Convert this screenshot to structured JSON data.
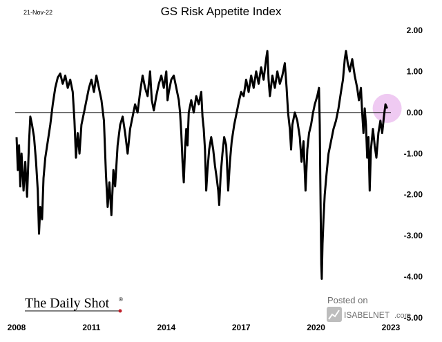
{
  "chart_data": {
    "type": "line",
    "title": "GS Risk Appetite Index",
    "date_label": "21-Nov-22",
    "ylim": [
      -5,
      2
    ],
    "y_ticks": [
      2,
      1,
      0,
      -1,
      -2,
      -3,
      -4,
      -5
    ],
    "y_tick_labels": [
      "2.00",
      "1.00",
      "0.00",
      "-1.00",
      "-2.00",
      "-3.00",
      "-4.00",
      "-5.00"
    ],
    "xlim": [
      2008,
      2023
    ],
    "x_ticks": [
      2008,
      2011,
      2014,
      2017,
      2020,
      2023
    ],
    "x_tick_labels": [
      "2008",
      "2011",
      "2014",
      "2017",
      "2020",
      "2023"
    ],
    "zero_line": 0,
    "highlight": {
      "x": 2022.85,
      "y": 0.1,
      "color": "#e9b8ee"
    },
    "series": [
      {
        "name": "GS Risk Appetite Index",
        "color": "#000000",
        "points": [
          [
            2008.0,
            -0.6
          ],
          [
            2008.05,
            -1.4
          ],
          [
            2008.1,
            -0.8
          ],
          [
            2008.15,
            -1.8
          ],
          [
            2008.2,
            -1.0
          ],
          [
            2008.28,
            -1.9
          ],
          [
            2008.35,
            -1.2
          ],
          [
            2008.42,
            -2.05
          ],
          [
            2008.5,
            -0.7
          ],
          [
            2008.55,
            -0.1
          ],
          [
            2008.62,
            -0.3
          ],
          [
            2008.7,
            -0.6
          ],
          [
            2008.78,
            -1.2
          ],
          [
            2008.85,
            -1.9
          ],
          [
            2008.9,
            -2.95
          ],
          [
            2008.95,
            -2.3
          ],
          [
            2009.02,
            -2.6
          ],
          [
            2009.08,
            -1.6
          ],
          [
            2009.15,
            -1.1
          ],
          [
            2009.25,
            -0.7
          ],
          [
            2009.35,
            -0.3
          ],
          [
            2009.45,
            0.2
          ],
          [
            2009.55,
            0.6
          ],
          [
            2009.65,
            0.85
          ],
          [
            2009.75,
            0.95
          ],
          [
            2009.85,
            0.7
          ],
          [
            2009.95,
            0.9
          ],
          [
            2010.05,
            0.6
          ],
          [
            2010.15,
            0.8
          ],
          [
            2010.25,
            0.5
          ],
          [
            2010.32,
            -0.2
          ],
          [
            2010.38,
            -1.1
          ],
          [
            2010.45,
            -0.5
          ],
          [
            2010.52,
            -1.0
          ],
          [
            2010.6,
            -0.3
          ],
          [
            2010.7,
            0.0
          ],
          [
            2010.8,
            0.3
          ],
          [
            2010.9,
            0.6
          ],
          [
            2011.0,
            0.8
          ],
          [
            2011.1,
            0.5
          ],
          [
            2011.2,
            0.9
          ],
          [
            2011.3,
            0.6
          ],
          [
            2011.4,
            0.3
          ],
          [
            2011.5,
            -0.2
          ],
          [
            2011.58,
            -1.5
          ],
          [
            2011.65,
            -2.3
          ],
          [
            2011.72,
            -1.7
          ],
          [
            2011.8,
            -2.5
          ],
          [
            2011.88,
            -1.4
          ],
          [
            2011.95,
            -1.8
          ],
          [
            2012.05,
            -0.8
          ],
          [
            2012.15,
            -0.3
          ],
          [
            2012.25,
            -0.1
          ],
          [
            2012.35,
            -0.5
          ],
          [
            2012.45,
            -1.0
          ],
          [
            2012.55,
            -0.4
          ],
          [
            2012.65,
            -0.1
          ],
          [
            2012.75,
            0.2
          ],
          [
            2012.85,
            0.0
          ],
          [
            2012.95,
            0.5
          ],
          [
            2013.05,
            0.9
          ],
          [
            2013.15,
            0.6
          ],
          [
            2013.25,
            0.4
          ],
          [
            2013.35,
            1.0
          ],
          [
            2013.42,
            0.3
          ],
          [
            2013.5,
            0.05
          ],
          [
            2013.6,
            0.4
          ],
          [
            2013.7,
            0.7
          ],
          [
            2013.8,
            0.9
          ],
          [
            2013.9,
            0.6
          ],
          [
            2014.0,
            1.0
          ],
          [
            2014.05,
            0.3
          ],
          [
            2014.1,
            0.5
          ],
          [
            2014.2,
            0.8
          ],
          [
            2014.3,
            0.9
          ],
          [
            2014.4,
            0.6
          ],
          [
            2014.5,
            0.3
          ],
          [
            2014.55,
            0.0
          ],
          [
            2014.6,
            -0.5
          ],
          [
            2014.65,
            -1.2
          ],
          [
            2014.7,
            -1.7
          ],
          [
            2014.75,
            -0.9
          ],
          [
            2014.8,
            -0.4
          ],
          [
            2014.85,
            -0.8
          ],
          [
            2014.9,
            0.0
          ],
          [
            2015.0,
            0.3
          ],
          [
            2015.1,
            0.0
          ],
          [
            2015.2,
            0.4
          ],
          [
            2015.3,
            0.2
          ],
          [
            2015.4,
            0.5
          ],
          [
            2015.45,
            -0.1
          ],
          [
            2015.5,
            -0.4
          ],
          [
            2015.55,
            -0.9
          ],
          [
            2015.6,
            -1.9
          ],
          [
            2015.65,
            -1.4
          ],
          [
            2015.72,
            -0.9
          ],
          [
            2015.8,
            -0.6
          ],
          [
            2015.88,
            -0.9
          ],
          [
            2015.95,
            -1.3
          ],
          [
            2016.02,
            -1.6
          ],
          [
            2016.08,
            -1.9
          ],
          [
            2016.12,
            -2.25
          ],
          [
            2016.18,
            -1.5
          ],
          [
            2016.25,
            -1.0
          ],
          [
            2016.32,
            -0.6
          ],
          [
            2016.4,
            -0.8
          ],
          [
            2016.48,
            -1.9
          ],
          [
            2016.55,
            -1.2
          ],
          [
            2016.62,
            -0.7
          ],
          [
            2016.72,
            -0.3
          ],
          [
            2016.82,
            0.0
          ],
          [
            2016.92,
            0.3
          ],
          [
            2017.0,
            0.5
          ],
          [
            2017.1,
            0.4
          ],
          [
            2017.2,
            0.8
          ],
          [
            2017.3,
            0.5
          ],
          [
            2017.4,
            0.9
          ],
          [
            2017.5,
            0.6
          ],
          [
            2017.6,
            1.0
          ],
          [
            2017.7,
            0.7
          ],
          [
            2017.8,
            1.1
          ],
          [
            2017.9,
            0.8
          ],
          [
            2018.0,
            1.3
          ],
          [
            2018.05,
            1.5
          ],
          [
            2018.1,
            0.8
          ],
          [
            2018.15,
            0.4
          ],
          [
            2018.25,
            0.9
          ],
          [
            2018.35,
            0.6
          ],
          [
            2018.45,
            1.0
          ],
          [
            2018.55,
            0.7
          ],
          [
            2018.65,
            0.9
          ],
          [
            2018.75,
            1.2
          ],
          [
            2018.82,
            0.6
          ],
          [
            2018.88,
            0.0
          ],
          [
            2018.95,
            -0.4
          ],
          [
            2019.0,
            -0.9
          ],
          [
            2019.05,
            -0.3
          ],
          [
            2019.15,
            0.0
          ],
          [
            2019.25,
            -0.2
          ],
          [
            2019.35,
            -0.6
          ],
          [
            2019.42,
            -1.2
          ],
          [
            2019.5,
            -0.7
          ],
          [
            2019.58,
            -1.9
          ],
          [
            2019.65,
            -0.9
          ],
          [
            2019.72,
            -0.5
          ],
          [
            2019.8,
            -0.3
          ],
          [
            2019.88,
            0.0
          ],
          [
            2019.95,
            0.2
          ],
          [
            2020.05,
            0.4
          ],
          [
            2020.12,
            0.6
          ],
          [
            2020.15,
            -0.3
          ],
          [
            2020.17,
            -1.5
          ],
          [
            2020.19,
            -2.7
          ],
          [
            2020.21,
            -3.7
          ],
          [
            2020.23,
            -4.05
          ],
          [
            2020.26,
            -3.2
          ],
          [
            2020.3,
            -2.6
          ],
          [
            2020.35,
            -2.0
          ],
          [
            2020.42,
            -1.5
          ],
          [
            2020.5,
            -1.0
          ],
          [
            2020.6,
            -0.7
          ],
          [
            2020.7,
            -0.4
          ],
          [
            2020.8,
            -0.2
          ],
          [
            2020.9,
            0.1
          ],
          [
            2021.0,
            0.5
          ],
          [
            2021.08,
            0.8
          ],
          [
            2021.15,
            1.3
          ],
          [
            2021.2,
            1.5
          ],
          [
            2021.27,
            1.2
          ],
          [
            2021.35,
            1.0
          ],
          [
            2021.45,
            1.3
          ],
          [
            2021.55,
            0.9
          ],
          [
            2021.65,
            0.6
          ],
          [
            2021.72,
            0.3
          ],
          [
            2021.8,
            0.6
          ],
          [
            2021.85,
            0.0
          ],
          [
            2021.9,
            -0.5
          ],
          [
            2021.95,
            0.1
          ],
          [
            2022.0,
            -0.3
          ],
          [
            2022.05,
            -1.1
          ],
          [
            2022.1,
            -0.6
          ],
          [
            2022.15,
            -1.9
          ],
          [
            2022.2,
            -0.9
          ],
          [
            2022.28,
            -0.4
          ],
          [
            2022.35,
            -0.8
          ],
          [
            2022.42,
            -1.1
          ],
          [
            2022.5,
            -0.5
          ],
          [
            2022.58,
            -0.2
          ],
          [
            2022.65,
            -0.5
          ],
          [
            2022.72,
            -0.1
          ],
          [
            2022.78,
            0.2
          ],
          [
            2022.85,
            0.1
          ]
        ]
      }
    ]
  },
  "branding": {
    "source_logo": "The Daily Shot",
    "source_logo_mark": "®",
    "posted_on": "Posted on",
    "isabelnet": "ISABELNET",
    "isabelnet_suffix": ".com"
  }
}
